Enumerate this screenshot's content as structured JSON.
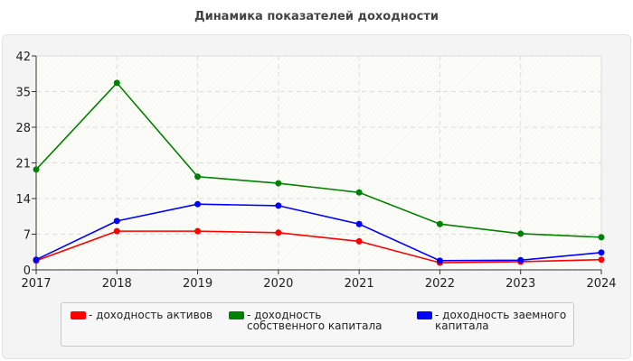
{
  "chart_data": {
    "type": "line",
    "title": "Динамика показателей доходности",
    "xlabel": "",
    "ylabel": "",
    "categories": [
      "2017",
      "2018",
      "2019",
      "2020",
      "2021",
      "2022",
      "2023",
      "2024"
    ],
    "ylim": [
      0,
      42
    ],
    "yticks": [
      "0",
      "7",
      "14",
      "21",
      "28",
      "35",
      "42"
    ],
    "grid": true,
    "legend_position": "bottom",
    "series": [
      {
        "name": "- доходность активов",
        "color": "#ff0000",
        "values": [
          1.8,
          7.6,
          7.6,
          7.3,
          5.6,
          1.4,
          1.6,
          2.0
        ]
      },
      {
        "name": "- доходность собственного капитала",
        "color": "#008000",
        "values": [
          19.7,
          36.7,
          18.3,
          17.0,
          15.2,
          9.0,
          7.1,
          6.4
        ]
      },
      {
        "name": "- доходность заемного капитала",
        "color": "#0000ff",
        "values": [
          2.0,
          9.6,
          12.9,
          12.6,
          9.0,
          1.8,
          1.9,
          3.4
        ]
      }
    ]
  }
}
